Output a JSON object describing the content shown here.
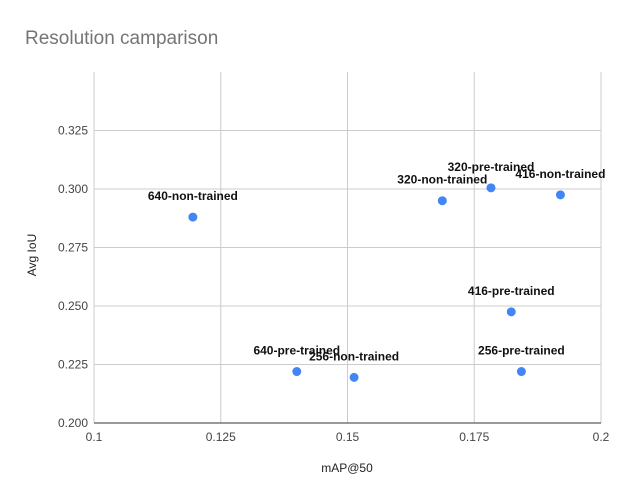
{
  "chart_data": {
    "type": "scatter",
    "title": "Resolution camparison",
    "xlabel": "mAP@50",
    "ylabel": "Avg IoU",
    "xlim": [
      0.1,
      0.2
    ],
    "ylim": [
      0.2,
      0.35
    ],
    "x_ticks": [
      "0.1",
      "0.125",
      "0.15",
      "0.175",
      "0.2"
    ],
    "y_ticks": [
      "0.200",
      "0.225",
      "0.250",
      "0.275",
      "0.300",
      "0.325"
    ],
    "grid": true,
    "color": "#4285f4",
    "points": [
      {
        "label": "640-non-trained",
        "x": 0.1195,
        "y": 0.288
      },
      {
        "label": "640-pre-trained",
        "x": 0.14,
        "y": 0.222
      },
      {
        "label": "256-non-trained",
        "x": 0.1513,
        "y": 0.2195
      },
      {
        "label": "320-non-trained",
        "x": 0.1687,
        "y": 0.295
      },
      {
        "label": "320-pre-trained",
        "x": 0.1783,
        "y": 0.3005
      },
      {
        "label": "416-non-trained",
        "x": 0.192,
        "y": 0.2975
      },
      {
        "label": "416-pre-trained",
        "x": 0.1823,
        "y": 0.2475
      },
      {
        "label": "256-pre-trained",
        "x": 0.1843,
        "y": 0.222
      }
    ]
  }
}
